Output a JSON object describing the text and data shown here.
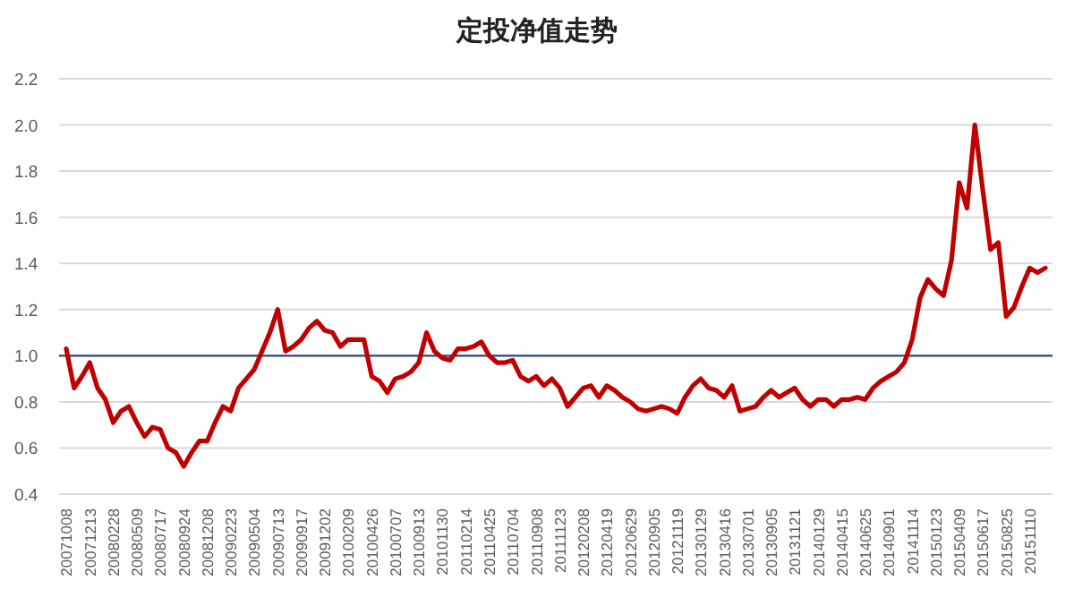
{
  "chart_data": {
    "type": "line",
    "title": "定投净值走势",
    "categories": [
      "20071008",
      null,
      null,
      "20071213",
      null,
      null,
      "20080228",
      null,
      null,
      "20080509",
      null,
      null,
      "20080717",
      null,
      null,
      "20080924",
      null,
      null,
      "20081208",
      null,
      null,
      "20090223",
      null,
      null,
      "20090504",
      null,
      null,
      "20090713",
      null,
      null,
      "20090917",
      null,
      null,
      "20091202",
      null,
      null,
      "20100209",
      null,
      null,
      "20100426",
      null,
      null,
      "20100707",
      null,
      null,
      "20100913",
      null,
      null,
      "20101130",
      null,
      null,
      "20110214",
      null,
      null,
      "20110425",
      null,
      null,
      "20110704",
      null,
      null,
      "20110908",
      null,
      null,
      "20111123",
      null,
      null,
      "20120208",
      null,
      null,
      "20120419",
      null,
      null,
      "20120629",
      null,
      null,
      "20120905",
      null,
      null,
      "20121119",
      null,
      null,
      "20130129",
      null,
      null,
      "20130416",
      null,
      null,
      "20130701",
      null,
      null,
      "20130905",
      null,
      null,
      "20131121",
      null,
      null,
      "20140129",
      null,
      null,
      "20140415",
      null,
      null,
      "20140625",
      null,
      null,
      "20140901",
      null,
      null,
      "20141114",
      null,
      null,
      "20150123",
      null,
      null,
      "20150409",
      null,
      null,
      "20150617",
      null,
      null,
      "20150825",
      null,
      null,
      "20151110",
      null,
      null
    ],
    "series": [
      {
        "color": "#c00000",
        "values": [
          1.03,
          0.86,
          0.91,
          0.97,
          0.86,
          0.81,
          0.71,
          0.76,
          0.78,
          0.71,
          0.65,
          0.69,
          0.68,
          0.6,
          0.58,
          0.52,
          0.58,
          0.63,
          0.63,
          0.71,
          0.78,
          0.76,
          0.86,
          0.9,
          0.94,
          1.02,
          1.1,
          1.2,
          1.02,
          1.04,
          1.07,
          1.12,
          1.15,
          1.11,
          1.1,
          1.04,
          1.07,
          1.07,
          1.07,
          0.91,
          0.89,
          0.84,
          0.9,
          0.91,
          0.93,
          0.97,
          1.1,
          1.02,
          0.99,
          0.98,
          1.03,
          1.03,
          1.04,
          1.06,
          1.0,
          0.97,
          0.97,
          0.98,
          0.91,
          0.89,
          0.91,
          0.87,
          0.9,
          0.86,
          0.78,
          0.82,
          0.86,
          0.87,
          0.82,
          0.87,
          0.85,
          0.82,
          0.8,
          0.77,
          0.76,
          0.77,
          0.78,
          0.77,
          0.75,
          0.82,
          0.87,
          0.9,
          0.86,
          0.85,
          0.82,
          0.87,
          0.76,
          0.77,
          0.78,
          0.82,
          0.85,
          0.82,
          0.84,
          0.86,
          0.81,
          0.78,
          0.81,
          0.81,
          0.78,
          0.81,
          0.81,
          0.82,
          0.81,
          0.86,
          0.89,
          0.91,
          0.93,
          0.97,
          1.07,
          1.25,
          1.33,
          1.29,
          1.26,
          1.41,
          1.75,
          1.64,
          2.0,
          1.72,
          1.46,
          1.49,
          1.17,
          1.21,
          1.3,
          1.38,
          1.36,
          1.38
        ]
      }
    ],
    "ylim": [
      0.4,
      2.2
    ],
    "yticks": [
      0.4,
      0.6,
      0.8,
      {
        "value": 1,
        "label": "1.0"
      },
      1.2,
      1.4,
      1.6,
      1.8,
      {
        "value": 2,
        "label": "2.0"
      },
      2.2
    ],
    "grid": "y",
    "ref_lines": [
      {
        "axis": "y",
        "value": 1.0,
        "color": "#2f4b7c"
      }
    ]
  }
}
